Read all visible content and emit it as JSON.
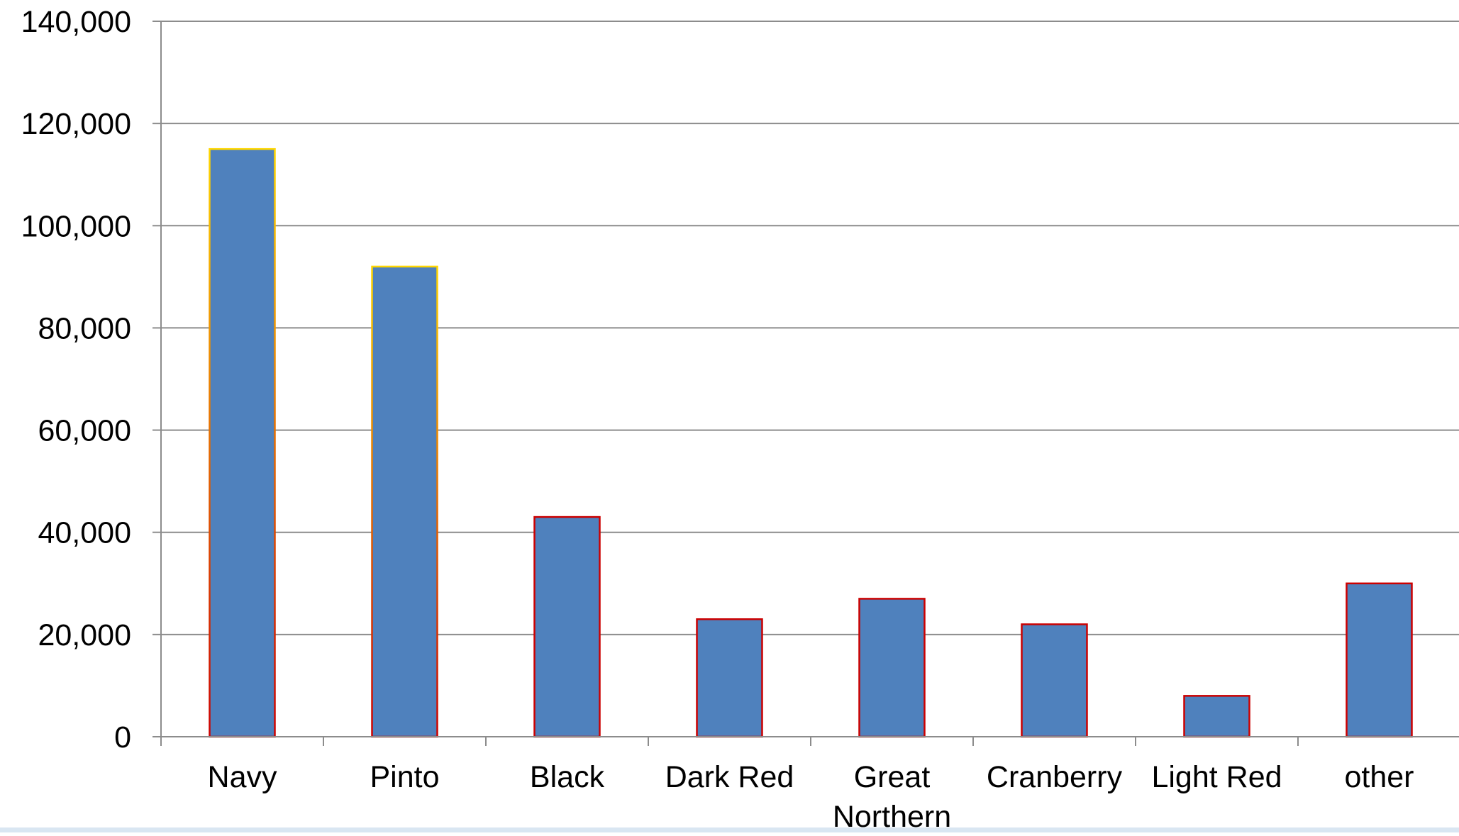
{
  "chart_data": {
    "type": "bar",
    "categories": [
      "Navy",
      "Pinto",
      "Black",
      "Dark Red",
      "Great Northern",
      "Cranberry",
      "Light Red",
      "other"
    ],
    "category_lines": [
      [
        "Navy"
      ],
      [
        "Pinto"
      ],
      [
        "Black"
      ],
      [
        "Dark Red"
      ],
      [
        "Great",
        "Northern"
      ],
      [
        "Cranberry"
      ],
      [
        "Light Red"
      ],
      [
        "other"
      ]
    ],
    "values": [
      115000,
      92000,
      43000,
      23000,
      27000,
      22000,
      8000,
      30000
    ],
    "yticks": [
      "0",
      "20,000",
      "40,000",
      "60,000",
      "80,000",
      "100,000",
      "120,000",
      "140,000"
    ],
    "ylim": [
      0,
      140000
    ],
    "grid": true,
    "legend": "none",
    "title": "",
    "xlabel": "",
    "ylabel": ""
  },
  "colors": {
    "bar_fill": "#4f81bd",
    "bar_outline_warm": "#ffd700",
    "bar_outline": "#cc0000",
    "grid": "#8c8c8c",
    "axis": "#8c8c8c",
    "text": "#000000"
  }
}
